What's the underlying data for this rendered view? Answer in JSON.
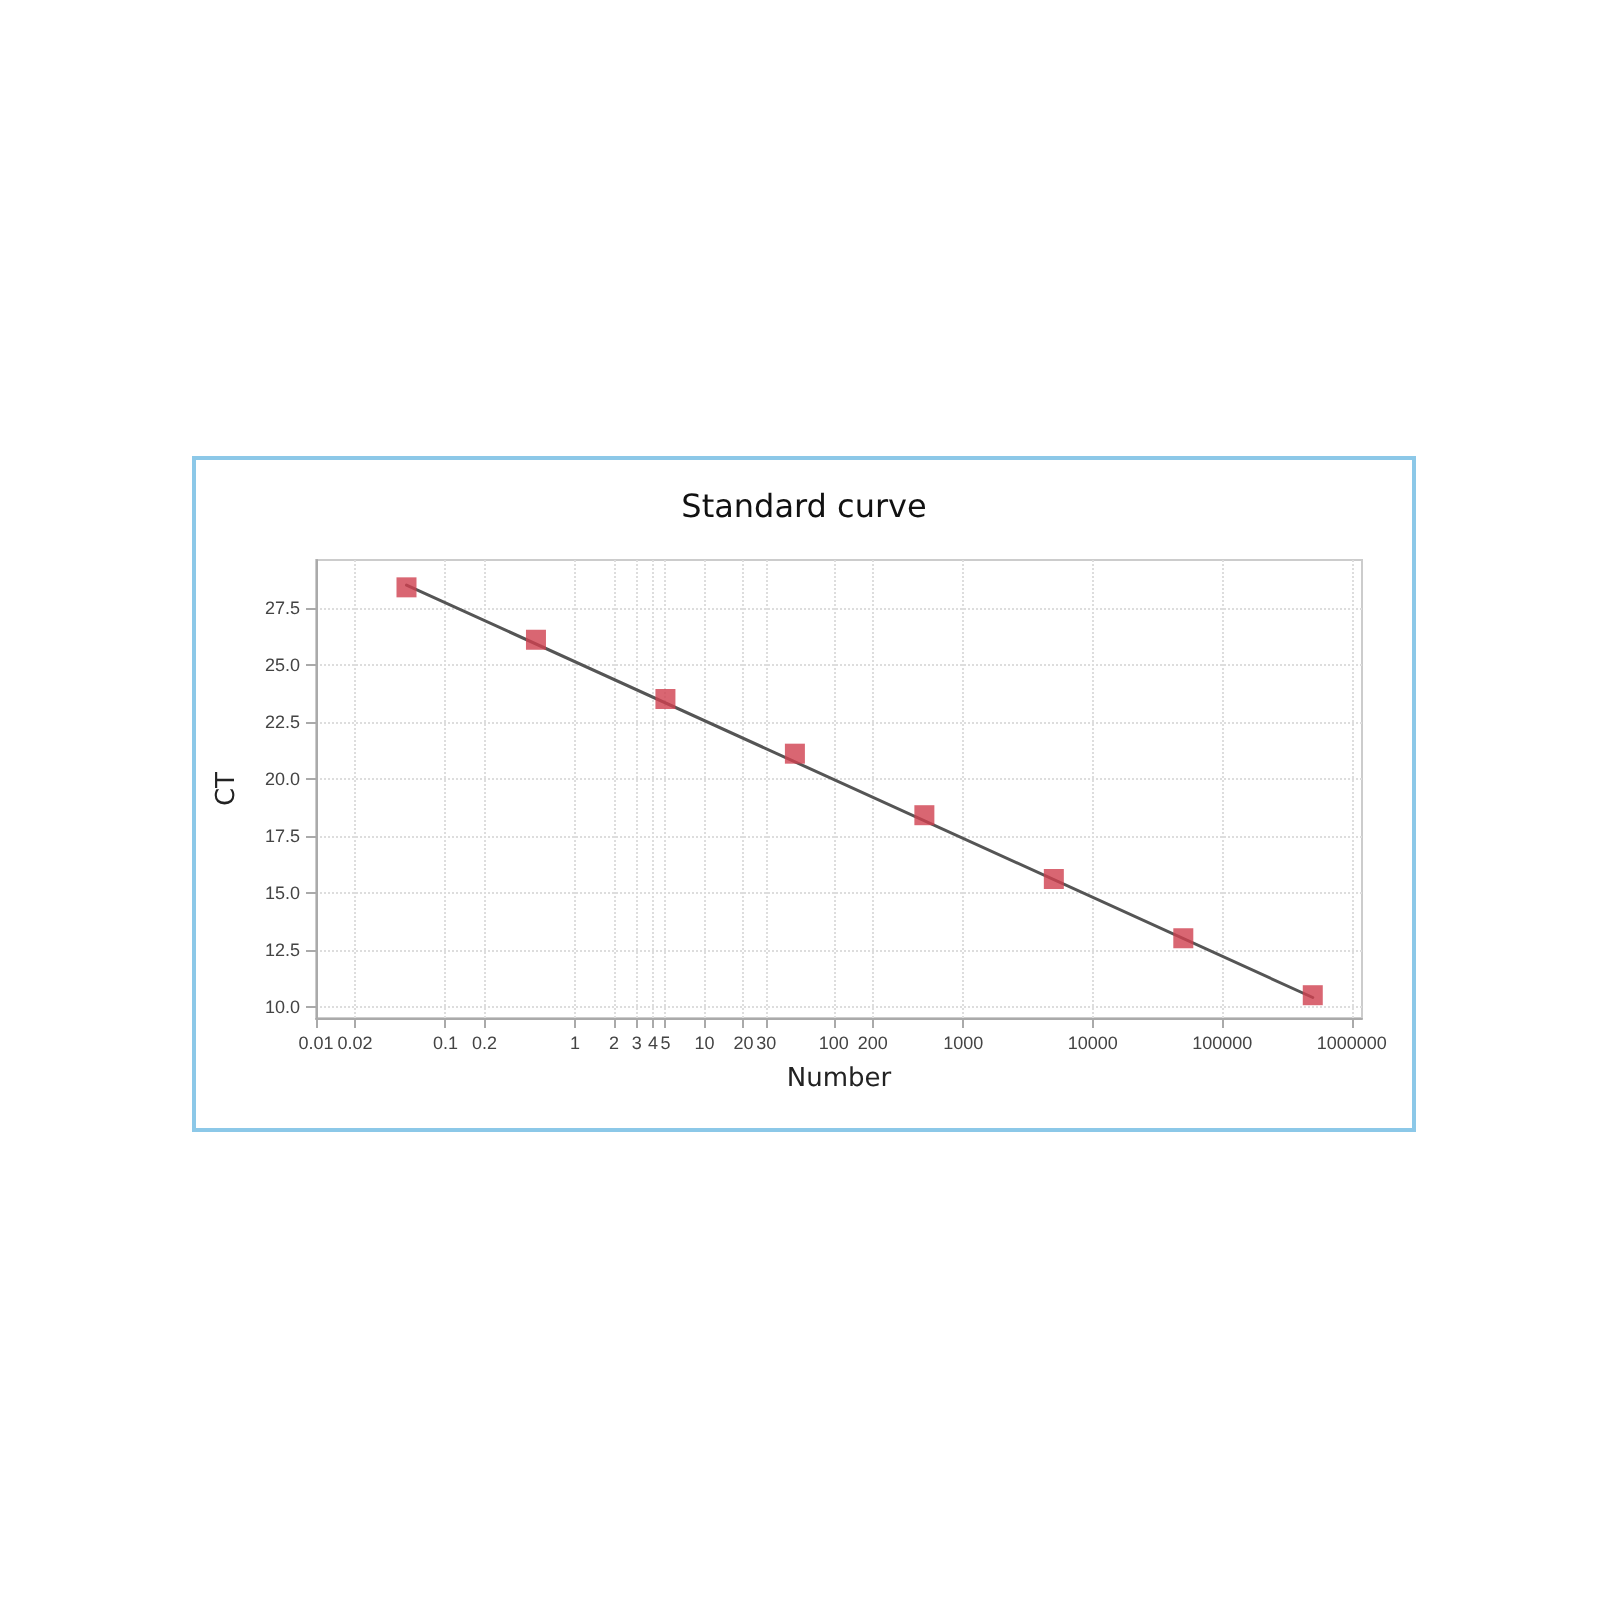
{
  "chart_data": {
    "type": "scatter",
    "title": "Standard curve",
    "xlabel": "Number",
    "ylabel": "CT",
    "x": [
      0.05,
      0.5,
      5,
      50,
      500,
      5000,
      50000,
      500000
    ],
    "series": [
      {
        "color": "#d0404f",
        "marker": "square",
        "values": [
          28.4,
          26.1,
          23.5,
          21.1,
          18.4,
          15.6,
          13.0,
          10.5
        ]
      },
      {
        "type": "line",
        "color": "#555555",
        "marker": "none",
        "line_style": "solid",
        "x": [
          0.05,
          500000
        ],
        "values": [
          28.5,
          10.4
        ]
      }
    ],
    "log": "x",
    "xlim": [
      0.01,
      1200000
    ],
    "ylim": [
      9.5,
      29.6
    ],
    "xticks": [
      0.01,
      0.02,
      0.1,
      0.2,
      1,
      2,
      3,
      4,
      5,
      10,
      20,
      30,
      100,
      200,
      1000,
      10000,
      100000,
      1000000
    ],
    "yticks": [
      {
        "value": 10,
        "label": "10.0"
      },
      {
        "value": 12.5,
        "label": "12.5"
      },
      {
        "value": 15,
        "label": "15.0"
      },
      {
        "value": 17.5,
        "label": "17.5"
      },
      {
        "value": 20,
        "label": "20.0"
      },
      {
        "value": 22.5,
        "label": "22.5"
      },
      {
        "value": 25,
        "label": "25.0"
      },
      {
        "value": 27.5,
        "label": "27.5"
      }
    ],
    "grid": true
  }
}
